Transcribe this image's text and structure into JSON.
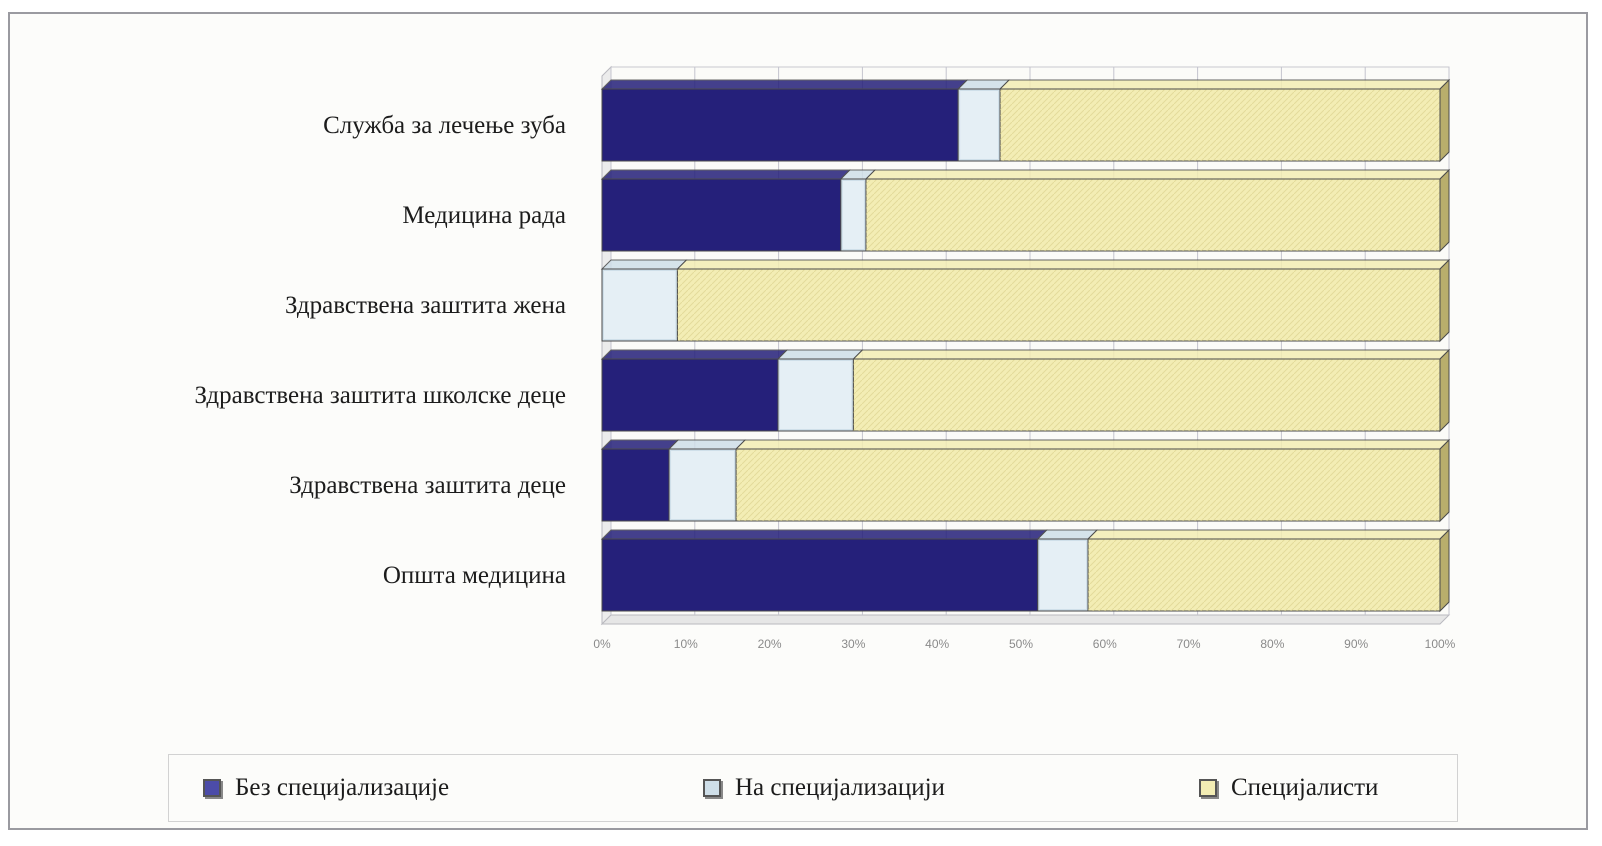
{
  "chart_data": {
    "type": "bar",
    "orientation": "horizontal",
    "stacked": "100%",
    "title": "",
    "categories": [
      "Служба за лечење зуба",
      "Медицина рада",
      "Здравствена заштита жена",
      "Здравствена заштита школске деце",
      "Здравствена заштита деце",
      "Општа медицина"
    ],
    "series": [
      {
        "name": "Без специјализације",
        "values": [
          42.5,
          28.5,
          0,
          21,
          8,
          52
        ],
        "color": "#25207a"
      },
      {
        "name": "На специјализацији",
        "values": [
          5,
          3,
          9,
          9,
          8,
          6
        ],
        "color": "#cfdfe9"
      },
      {
        "name": "Специјалисти",
        "values": [
          52.5,
          68.5,
          91,
          70,
          84,
          42
        ],
        "color": "#f3edb4"
      }
    ],
    "xlim": [
      0,
      100
    ],
    "xticks": [
      "0%",
      "10%",
      "20%",
      "30%",
      "40%",
      "50%",
      "60%",
      "70%",
      "80%",
      "90%",
      "100%"
    ],
    "grid": true,
    "legend": "bottom"
  }
}
